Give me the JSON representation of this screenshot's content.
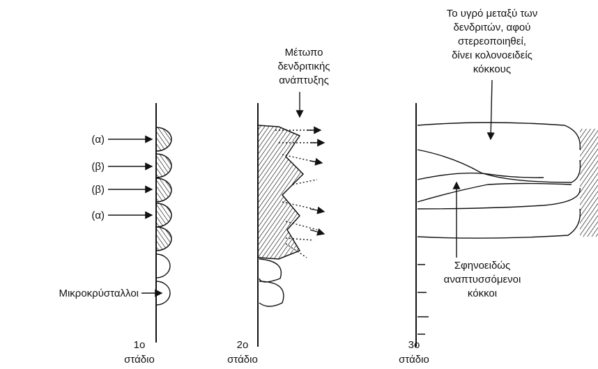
{
  "annotations": {
    "liquid": [
      "Το υγρό μεταξύ των",
      "δενδριτών, αφού",
      "στερεοποιηθεί,",
      "δίνει κολονοειδείς",
      "κόκκους"
    ],
    "front": [
      "Μέτωπο",
      "δενδριτικής",
      "ανάπτυξης"
    ],
    "wedge": [
      "Σφηνοειδώς",
      "αναπτυσσόμενοι",
      "κόκκοι"
    ]
  },
  "stage1_labels": [
    "(α)",
    "(β)",
    "(β)",
    "(α)",
    "Μικροκρύσταλλοι"
  ],
  "stages": [
    {
      "number": "1ο",
      "label": "στάδιο"
    },
    {
      "number": "2ο",
      "label": "στάδιο"
    },
    {
      "number": "3ο",
      "label": "στάδιο"
    }
  ]
}
